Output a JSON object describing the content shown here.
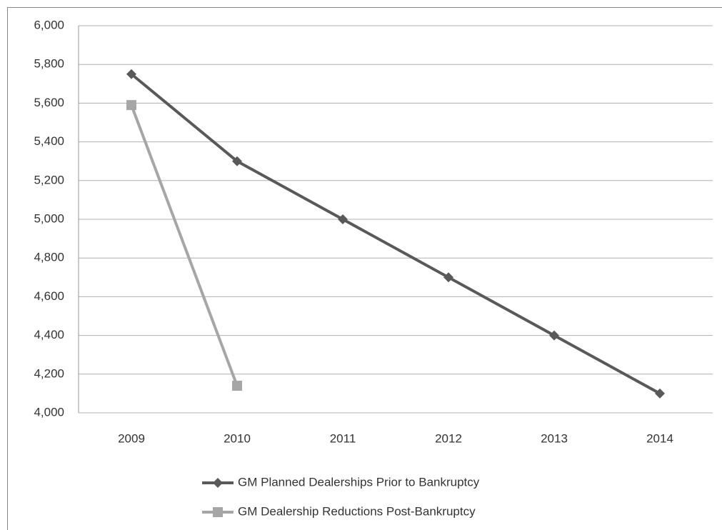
{
  "chart_data": {
    "type": "line",
    "categories": [
      "2009",
      "2010",
      "2011",
      "2012",
      "2013",
      "2014"
    ],
    "series": [
      {
        "name": "GM Planned Dealerships Prior to Bankruptcy",
        "color": "#595959",
        "marker": "diamond",
        "values": [
          5750,
          5300,
          5000,
          4700,
          4400,
          4100
        ]
      },
      {
        "name": "GM Dealership Reductions Post-Bankruptcy",
        "color": "#a6a6a6",
        "marker": "square",
        "values": [
          5590,
          4140,
          null,
          null,
          null,
          null
        ]
      }
    ],
    "ylim": [
      4000,
      6000
    ],
    "yticks": [
      {
        "value": 4000,
        "label": "4,000"
      },
      {
        "value": 4200,
        "label": "4,200"
      },
      {
        "value": 4400,
        "label": "4,400"
      },
      {
        "value": 4600,
        "label": "4,600"
      },
      {
        "value": 4800,
        "label": "4,800"
      },
      {
        "value": 5000,
        "label": "5,000"
      },
      {
        "value": 5200,
        "label": "5,200"
      },
      {
        "value": 5400,
        "label": "5,400"
      },
      {
        "value": 5600,
        "label": "5,600"
      },
      {
        "value": 5800,
        "label": "5,800"
      },
      {
        "value": 6000,
        "label": "6,000"
      }
    ],
    "grid": true,
    "legend": "bottom"
  }
}
